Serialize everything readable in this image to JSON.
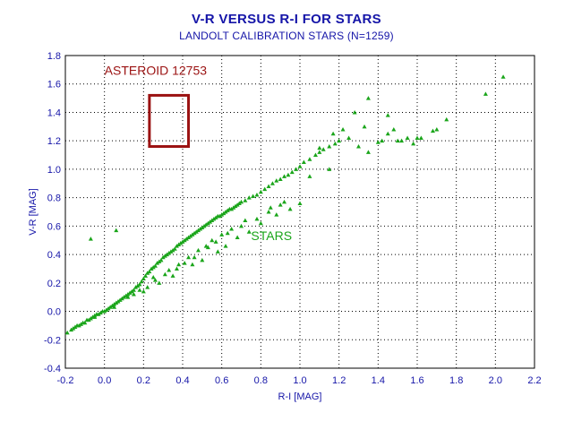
{
  "colors": {
    "text": "#1515a8",
    "points": "#1aa51a",
    "asteroid": "#9b1212",
    "grid": "#000000",
    "background": "#ffffff"
  },
  "chart_data": {
    "type": "scatter",
    "title": "V-R VERSUS R-I FOR STARS",
    "subtitle": "LANDOLT CALIBRATION STARS (N=1259)",
    "xlabel": "R-I [MAG]",
    "ylabel": "V-R [MAG]",
    "xlim": [
      -0.2,
      2.2
    ],
    "ylim": [
      -0.4,
      1.8
    ],
    "xticks": [
      "-0.2",
      "0.0",
      "0.2",
      "0.4",
      "0.6",
      "0.8",
      "1.0",
      "1.2",
      "1.4",
      "1.6",
      "1.8",
      "2.0",
      "2.2"
    ],
    "yticks": [
      "-0.4",
      "-0.2",
      "0.0",
      "0.2",
      "0.4",
      "0.6",
      "0.8",
      "1.0",
      "1.2",
      "1.4",
      "1.6",
      "1.8"
    ],
    "grid": true,
    "marker": "triangle",
    "series": [
      {
        "name": "STARS",
        "x": [
          -0.19,
          -0.17,
          -0.16,
          -0.15,
          -0.14,
          -0.13,
          -0.12,
          -0.11,
          -0.1,
          -0.09,
          -0.08,
          -0.07,
          -0.06,
          -0.05,
          -0.04,
          -0.03,
          -0.02,
          -0.01,
          0.0,
          0.01,
          0.02,
          0.03,
          0.04,
          0.05,
          0.06,
          0.07,
          0.08,
          0.09,
          0.1,
          0.11,
          0.12,
          0.13,
          0.14,
          0.15,
          0.16,
          0.17,
          0.18,
          0.19,
          0.2,
          0.21,
          0.22,
          0.23,
          0.24,
          0.25,
          0.26,
          0.27,
          0.28,
          0.29,
          0.3,
          0.31,
          0.32,
          0.33,
          0.34,
          0.35,
          0.36,
          0.37,
          0.38,
          0.39,
          0.4,
          0.41,
          0.42,
          0.43,
          0.44,
          0.45,
          0.46,
          0.47,
          0.48,
          0.49,
          0.5,
          0.51,
          0.52,
          0.53,
          0.54,
          0.55,
          0.56,
          0.57,
          0.58,
          0.59,
          0.6,
          0.61,
          0.62,
          0.63,
          0.64,
          0.65,
          0.66,
          0.67,
          0.68,
          0.69,
          0.7,
          0.72,
          0.74,
          0.76,
          0.78,
          0.8,
          0.82,
          0.84,
          0.86,
          0.88,
          0.9,
          0.92,
          0.94,
          0.96,
          0.98,
          1.0,
          1.02,
          1.05,
          1.08,
          1.1,
          1.12,
          1.15,
          1.18,
          1.2,
          1.25,
          1.3,
          1.35,
          1.4,
          1.42,
          1.45,
          1.5,
          1.55,
          1.6,
          1.7,
          1.75,
          1.95,
          2.04,
          -0.07,
          0.06,
          0.2,
          0.28,
          0.25,
          0.33,
          0.38,
          0.43,
          0.48,
          0.52,
          0.55,
          0.6,
          0.65,
          0.72,
          0.85,
          0.92,
          1.05,
          1.1,
          1.17,
          1.28,
          1.35,
          1.48,
          1.58,
          1.68,
          0.15,
          0.22,
          0.35,
          0.45,
          0.5,
          0.58,
          0.62,
          0.68,
          0.74,
          0.8,
          0.88,
          0.95,
          1.0,
          1.15,
          1.22,
          1.33,
          1.45,
          1.52,
          1.62,
          -0.05,
          0.05,
          0.12,
          0.18,
          0.26,
          0.31,
          0.37,
          0.41,
          0.46,
          0.53,
          0.57,
          0.63,
          0.7,
          0.78,
          0.84,
          0.9
        ],
        "y": [
          -0.15,
          -0.13,
          -0.12,
          -0.11,
          -0.1,
          -0.1,
          -0.09,
          -0.08,
          -0.08,
          -0.06,
          -0.06,
          -0.05,
          -0.04,
          -0.03,
          -0.02,
          -0.02,
          -0.01,
          0.0,
          0.0,
          0.01,
          0.02,
          0.03,
          0.04,
          0.05,
          0.06,
          0.07,
          0.08,
          0.09,
          0.1,
          0.11,
          0.12,
          0.13,
          0.14,
          0.15,
          0.17,
          0.18,
          0.19,
          0.21,
          0.23,
          0.25,
          0.27,
          0.28,
          0.3,
          0.31,
          0.32,
          0.34,
          0.35,
          0.36,
          0.38,
          0.39,
          0.4,
          0.41,
          0.42,
          0.43,
          0.44,
          0.46,
          0.47,
          0.48,
          0.49,
          0.5,
          0.51,
          0.52,
          0.53,
          0.54,
          0.55,
          0.56,
          0.57,
          0.58,
          0.59,
          0.6,
          0.61,
          0.62,
          0.63,
          0.64,
          0.65,
          0.66,
          0.67,
          0.67,
          0.68,
          0.69,
          0.7,
          0.71,
          0.72,
          0.72,
          0.73,
          0.74,
          0.75,
          0.76,
          0.77,
          0.78,
          0.8,
          0.81,
          0.82,
          0.84,
          0.86,
          0.88,
          0.9,
          0.92,
          0.93,
          0.95,
          0.96,
          0.98,
          1.0,
          1.02,
          1.05,
          1.07,
          1.1,
          1.12,
          1.14,
          1.16,
          1.18,
          1.2,
          1.22,
          1.16,
          1.5,
          1.19,
          1.2,
          1.38,
          1.2,
          1.22,
          1.22,
          1.28,
          1.35,
          1.53,
          1.65,
          0.51,
          0.57,
          0.14,
          0.2,
          0.24,
          0.29,
          0.33,
          0.38,
          0.43,
          0.46,
          0.5,
          0.54,
          0.58,
          0.64,
          0.73,
          0.77,
          0.95,
          1.15,
          1.25,
          1.4,
          1.12,
          1.28,
          1.18,
          1.27,
          0.12,
          0.17,
          0.25,
          0.33,
          0.36,
          0.42,
          0.46,
          0.52,
          0.56,
          0.62,
          0.68,
          0.72,
          0.76,
          1.0,
          1.28,
          1.3,
          1.25,
          1.2,
          1.22,
          -0.04,
          0.03,
          0.1,
          0.15,
          0.22,
          0.26,
          0.3,
          0.34,
          0.38,
          0.45,
          0.49,
          0.55,
          0.6,
          0.65,
          0.7,
          0.75
        ]
      }
    ],
    "annotations": [
      {
        "text": "ASTEROID 12753",
        "x": 0.0,
        "y": 1.665,
        "color": "#9b1212"
      },
      {
        "text": "STARS",
        "x": 0.75,
        "y": 0.5,
        "color": "#1aa51a"
      }
    ],
    "asteroid_box": {
      "x": [
        0.23,
        0.43
      ],
      "y": [
        1.16,
        1.52
      ],
      "color": "#9b1212"
    }
  }
}
